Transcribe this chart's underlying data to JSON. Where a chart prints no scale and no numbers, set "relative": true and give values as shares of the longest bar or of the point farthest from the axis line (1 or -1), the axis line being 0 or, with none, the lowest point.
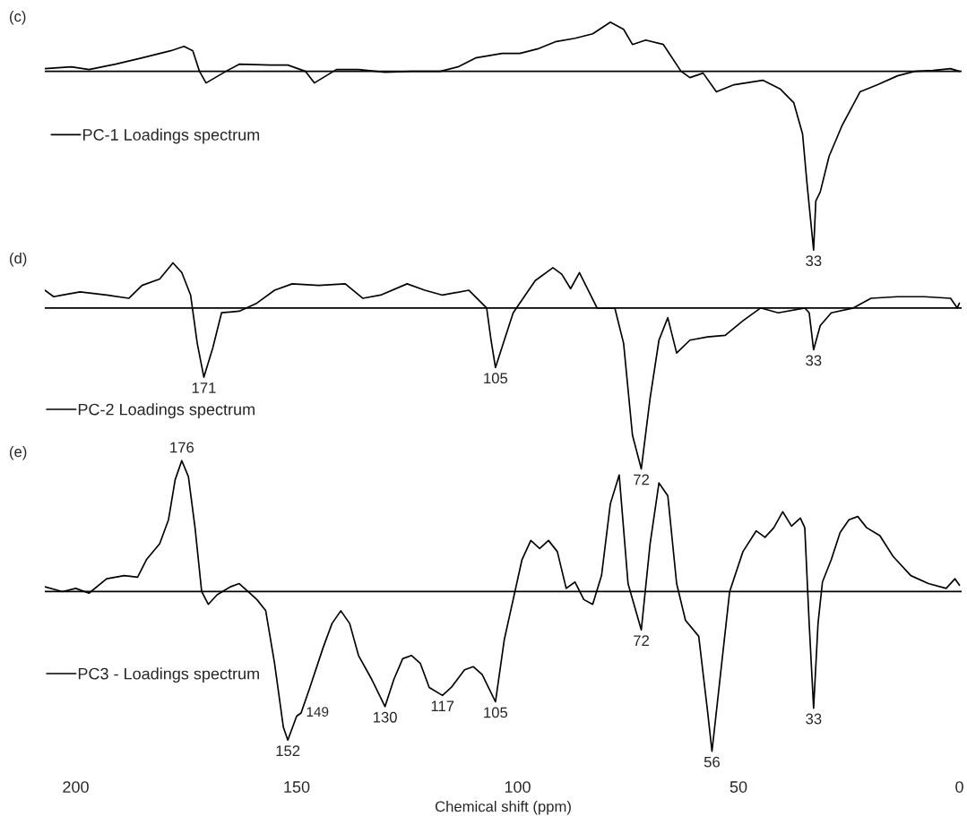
{
  "chart_data": [
    {
      "type": "line",
      "title": "(c)",
      "relative": true,
      "xlim": [
        207,
        -0.5
      ],
      "xticks": [
        200,
        150,
        100,
        50,
        0
      ],
      "tick_labels": false,
      "legend": "left",
      "marker": "none",
      "line_style": "solid",
      "series": [
        {
          "name": "PC-1 Loadings spectrum",
          "color": "#000000",
          "x": [
            207,
            201,
            197,
            191,
            185,
            178.5,
            175.5,
            173.5,
            172,
            170.5,
            166,
            163,
            156,
            152,
            148,
            146,
            144,
            141,
            136,
            130,
            124,
            117.5,
            113.5,
            109.5,
            103.5,
            99.5,
            95.5,
            91.5,
            87,
            83,
            79,
            76,
            74,
            71,
            67,
            63,
            61,
            58,
            55,
            51,
            44.5,
            40.5,
            37.5,
            35.5,
            34.5,
            33,
            32.5,
            31.5,
            29.5,
            26.5,
            22.5,
            18.5,
            14,
            10,
            6,
            2,
            0
          ],
          "values": [
            0.015,
            0.025,
            0.01,
            0.04,
            0.075,
            0.115,
            0.14,
            0.115,
            0,
            -0.065,
            0,
            0.04,
            0.035,
            0.035,
            0,
            -0.065,
            -0.035,
            0.01,
            0.01,
            -0.005,
            0,
            0,
            0.025,
            0.075,
            0.1,
            0.1,
            0.125,
            0.165,
            0.185,
            0.21,
            0.275,
            0.235,
            0.15,
            0.175,
            0.15,
            0,
            -0.035,
            -0.01,
            -0.115,
            -0.075,
            -0.05,
            -0.1,
            -0.175,
            -0.35,
            -0.625,
            -1,
            -0.725,
            -0.675,
            -0.475,
            -0.3,
            -0.115,
            -0.075,
            -0.025,
            0,
            0.005,
            0.015,
            0
          ]
        }
      ],
      "annotations": [
        {
          "text": "33",
          "x": 33,
          "y": -1
        }
      ]
    },
    {
      "type": "line",
      "title": "(d)",
      "relative": true,
      "xlim": [
        207,
        -0.5
      ],
      "xticks": [
        200,
        150,
        100,
        50,
        0
      ],
      "tick_labels": false,
      "legend": "bottom left",
      "marker": "none",
      "line_style": "solid",
      "series": [
        {
          "name": "PC-2 Loadings spectrum",
          "color": "#000000",
          "x": [
            207,
            205,
            203,
            199,
            193,
            188,
            185,
            181,
            178,
            176,
            174,
            172.5,
            171,
            169,
            167,
            163,
            159,
            155,
            151,
            145,
            139,
            135,
            131,
            125,
            121,
            117,
            111,
            107,
            106,
            105,
            103,
            101,
            96,
            92,
            90,
            88,
            86,
            84,
            82,
            78,
            76,
            74,
            72,
            70,
            68,
            66,
            64,
            61,
            57,
            53,
            49,
            45,
            41,
            35,
            34,
            33,
            31.5,
            29,
            24,
            20,
            14,
            8,
            2,
            0.5,
            0
          ],
          "values": [
            0.11,
            0.07,
            0.08,
            0.1,
            0.08,
            0.06,
            0.14,
            0.18,
            0.28,
            0.22,
            0.08,
            -0.22,
            -0.43,
            -0.25,
            -0.03,
            -0.02,
            0.03,
            0.11,
            0.15,
            0.14,
            0.15,
            0.06,
            0.08,
            0.15,
            0.11,
            0.08,
            0.11,
            0,
            -0.2,
            -0.37,
            -0.2,
            -0.03,
            0.17,
            0.25,
            0.21,
            0.12,
            0.22,
            0.11,
            0,
            0,
            -0.22,
            -0.79,
            -1,
            -0.56,
            -0.2,
            -0.06,
            -0.28,
            -0.2,
            -0.18,
            -0.17,
            -0.08,
            0,
            -0.03,
            0,
            -0.03,
            -0.26,
            -0.11,
            -0.03,
            0,
            0.06,
            0.07,
            0.07,
            0.06,
            0,
            0.03
          ]
        }
      ],
      "annotations": [
        {
          "text": "171",
          "x": 171,
          "y": -0.43
        },
        {
          "text": "105",
          "x": 105,
          "y": -0.37
        },
        {
          "text": "72",
          "x": 72,
          "y": -1
        },
        {
          "text": "33",
          "x": 33,
          "y": -0.26
        }
      ]
    },
    {
      "type": "line",
      "title": "(e)",
      "relative": true,
      "xlim": [
        207,
        -0.5
      ],
      "xticks": [
        200,
        150,
        100,
        50,
        0
      ],
      "tick_labels": "x",
      "xlabel": "Chemical shift (ppm)",
      "legend": "bottom left",
      "marker": "none",
      "line_style": "solid",
      "series": [
        {
          "name": "PC3 - Loadings spectrum",
          "color": "#000000",
          "x": [
            207,
            203,
            200,
            197,
            193,
            189,
            186,
            184,
            181,
            179,
            177.5,
            176,
            174.5,
            173,
            171.5,
            170,
            168,
            165,
            163,
            161,
            159,
            157,
            155,
            153,
            152,
            150,
            149,
            147,
            144,
            142,
            140,
            138,
            136,
            133,
            130,
            128,
            126,
            124,
            122,
            120,
            117,
            115,
            112,
            110,
            108,
            105,
            103,
            101,
            99,
            97,
            95,
            93,
            91,
            89,
            87,
            85,
            83,
            81,
            79,
            77,
            75,
            72,
            70,
            68,
            66,
            64,
            62,
            59,
            57,
            56,
            54,
            52,
            49,
            46,
            44,
            42,
            40,
            38,
            36,
            35,
            34,
            33,
            32,
            31,
            29,
            27,
            25,
            23,
            21,
            18,
            15,
            11,
            7,
            3,
            1,
            0
          ],
          "values": [
            0.03,
            0,
            0.02,
            -0.01,
            0.08,
            0.1,
            0.09,
            0.2,
            0.3,
            0.45,
            0.7,
            0.82,
            0.72,
            0.4,
            0,
            -0.08,
            -0.02,
            0.03,
            0.05,
            0,
            -0.05,
            -0.12,
            -0.45,
            -0.85,
            -0.93,
            -0.78,
            -0.76,
            -0.6,
            -0.35,
            -0.2,
            -0.12,
            -0.2,
            -0.4,
            -0.55,
            -0.72,
            -0.55,
            -0.42,
            -0.4,
            -0.45,
            -0.6,
            -0.65,
            -0.6,
            -0.49,
            -0.47,
            -0.52,
            -0.69,
            -0.3,
            -0.05,
            0.2,
            0.32,
            0.27,
            0.32,
            0.25,
            0.02,
            0.06,
            -0.05,
            -0.08,
            0.1,
            0.55,
            0.73,
            0.05,
            -0.24,
            0.3,
            0.68,
            0.6,
            0.05,
            -0.18,
            -0.28,
            -0.75,
            -1,
            -0.5,
            0,
            0.25,
            0.38,
            0.34,
            0.4,
            0.5,
            0.41,
            0.46,
            0.4,
            -0.2,
            -0.73,
            -0.2,
            0.06,
            0.2,
            0.37,
            0.45,
            0.47,
            0.4,
            0.35,
            0.22,
            0.1,
            0.05,
            0.02,
            0.08,
            0.04
          ]
        }
      ],
      "annotations": [
        {
          "text": "176",
          "x": 176,
          "y": 0.82
        },
        {
          "text": "152",
          "x": 152,
          "y": -0.93
        },
        {
          "text": "149",
          "x": 149,
          "y": -0.76
        },
        {
          "text": "130",
          "x": 130,
          "y": -0.72
        },
        {
          "text": "117",
          "x": 117,
          "y": -0.65
        },
        {
          "text": "105",
          "x": 105,
          "y": -0.69
        },
        {
          "text": "72",
          "x": 72,
          "y": -0.24
        },
        {
          "text": "56",
          "x": 56,
          "y": -1
        },
        {
          "text": "33",
          "x": 33,
          "y": -0.73
        }
      ]
    }
  ]
}
